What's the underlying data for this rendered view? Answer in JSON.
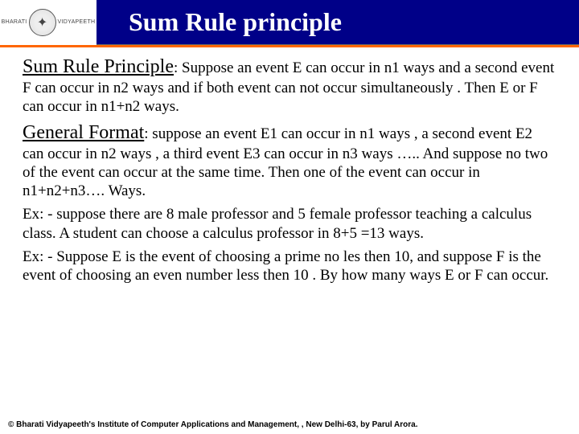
{
  "header": {
    "logo_left": "BHARATI",
    "logo_right": "VIDYAPEETH",
    "title": "Sum Rule principle"
  },
  "body": {
    "p1_lead": "Sum Rule Principle",
    "p1_rest": ": Suppose an event E can occur in n1 ways and a second event F can occur in n2 ways and if both event can not occur simultaneously . Then E or F can occur in n1+n2 ways.",
    "p2_lead": "General Format",
    "p2_rest": ": suppose an event E1 can occur in n1 ways , a second event E2 can occur in n2 ways , a third event E3 can occur in n3 ways ….. And suppose no two of the event can occur at the same time. Then one of the event can occur in n1+n2+n3…. Ways.",
    "ex1": "Ex: - suppose there are 8 male professor and 5 female professor teaching a calculus class. A student can choose a calculus professor in 8+5 =13 ways.",
    "ex2": "Ex: - Suppose E is the event of choosing a prime no les then 10, and suppose F is the event of choosing an even number less then 10 . By how many ways E or F can occur."
  },
  "footer": {
    "text": "© Bharati Vidyapeeth's Institute of Computer Applications and Management, , New Delhi-63, by Parul Arora."
  },
  "colors": {
    "header_bg": "#000088",
    "rule": "#ff6600",
    "title_text": "#ffffff",
    "body_text": "#000000"
  }
}
